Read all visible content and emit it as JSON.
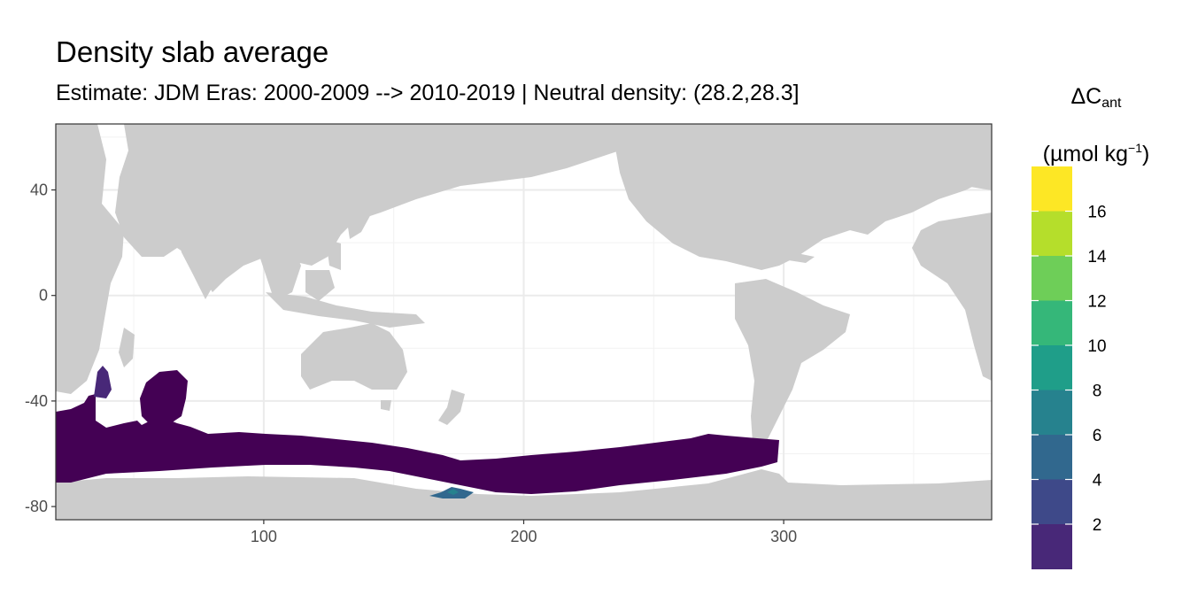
{
  "chart_data": {
    "type": "heatmap",
    "title": "Density slab average",
    "subtitle": "Estimate: JDM Eras: 2000-2009 --> 2010-2019 | Neutral density: (28.2,28.3]",
    "xlabel": "",
    "ylabel": "",
    "xlim": [
      20,
      380
    ],
    "ylim": [
      -85,
      65
    ],
    "x_ticks": [
      100,
      200,
      300
    ],
    "y_ticks": [
      40,
      0,
      -40,
      -80
    ],
    "grid": true,
    "land_color": "#cccccc",
    "legend": {
      "title_main": "ΔC",
      "title_sub": "ant",
      "unit_prefix": "(µmol kg",
      "unit_sup": "−1",
      "unit_suffix": ")",
      "placement": "right",
      "labels": [
        "16",
        "14",
        "12",
        "10",
        "8",
        "6",
        "4",
        "2"
      ],
      "colors": [
        "#440154",
        "#482878",
        "#3e4989",
        "#31688e",
        "#26828e",
        "#1f9e89",
        "#35b779",
        "#6ece58",
        "#b5de2b",
        "#fde725"
      ]
    },
    "regions": [
      {
        "name": "southern-ocean-band",
        "value": 1,
        "color": "#440154"
      },
      {
        "name": "kerguelen-plateau",
        "value": 1,
        "color": "#440154"
      },
      {
        "name": "western-indian-sector",
        "value": 3,
        "color": "#482878"
      },
      {
        "name": "ross-sea-patch",
        "value": 7,
        "color": "#31688e"
      }
    ]
  }
}
